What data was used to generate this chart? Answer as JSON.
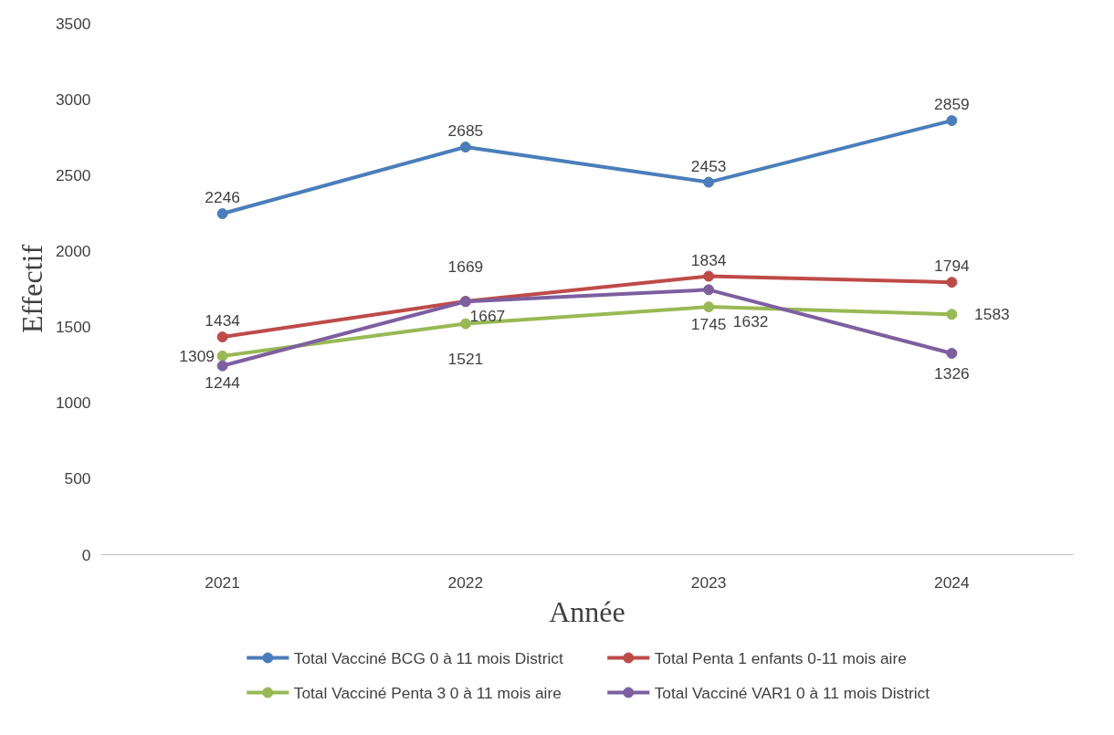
{
  "chart_data": {
    "type": "line",
    "xlabel": "Année",
    "ylabel": "Effectif",
    "categories": [
      "2021",
      "2022",
      "2023",
      "2024"
    ],
    "series": [
      {
        "name": "Total Vacciné BCG 0 à 11 mois District",
        "color": "#4a7ebb",
        "values": [
          2246,
          2685,
          2453,
          2859
        ]
      },
      {
        "name": "Total Penta 1 enfants 0-11 mois aire",
        "color": "#be4b48",
        "values": [
          1434,
          1669,
          1834,
          1794
        ]
      },
      {
        "name": "Total Vacciné Penta 3  0 à 11 mois aire",
        "color": "#98b954",
        "values": [
          1309,
          1521,
          1632,
          1583
        ]
      },
      {
        "name": "Total Vacciné VAR1 0 à 11 mois District",
        "color": "#7d5fa0",
        "values": [
          1244,
          1667,
          1745,
          1326
        ]
      }
    ],
    "ylim": [
      0,
      3500
    ],
    "yticks": [
      0,
      500,
      1000,
      1500,
      2000,
      2500,
      3000,
      3500
    ],
    "grid": false,
    "legend": "bottom",
    "marker": "circle",
    "line_style": "solid",
    "data_labels": true
  }
}
